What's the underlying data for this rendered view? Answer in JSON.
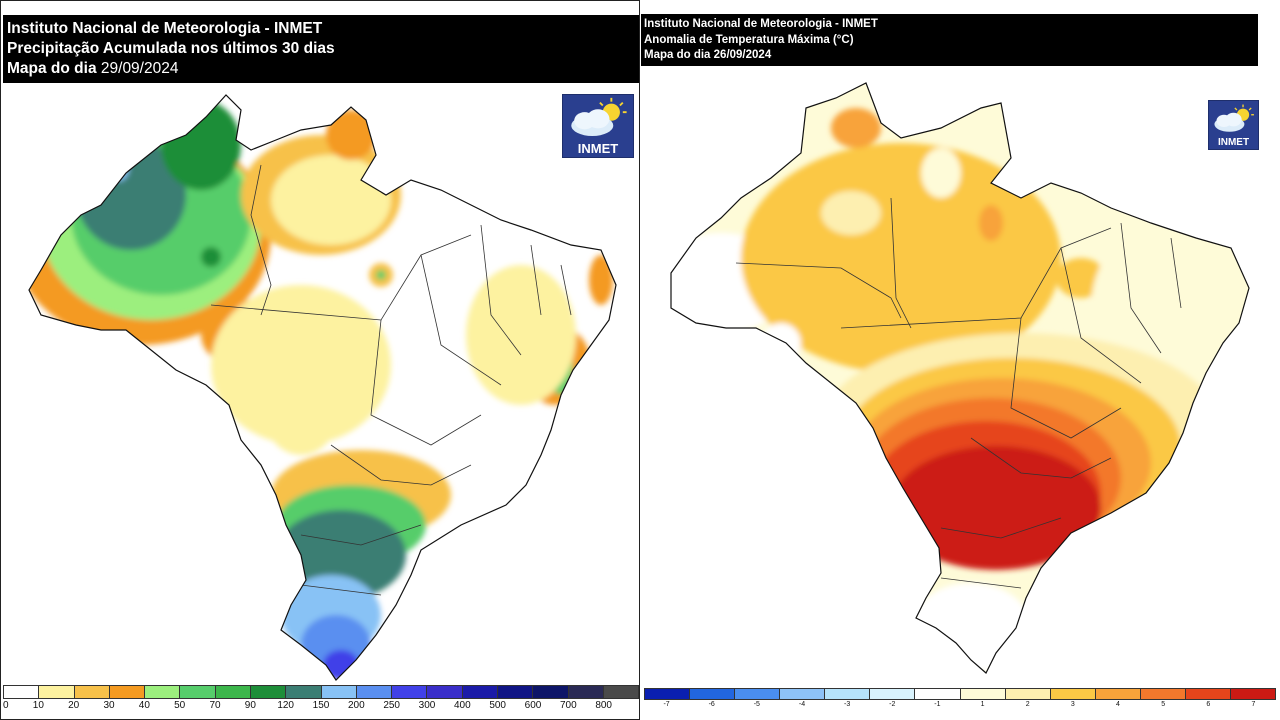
{
  "left": {
    "title": "Instituto Nacional de Meteorologia - INMET",
    "subtitle": "Precipitação Acumulada nos últimos 30 dias",
    "date_label": "Mapa do dia",
    "date_value": "29/09/2024",
    "logo_text": "INMET",
    "legend": {
      "colors": [
        "#ffffff",
        "#fdf2a0",
        "#f7c14a",
        "#f49a21",
        "#9cef7e",
        "#56cd6b",
        "#3cb64b",
        "#1e8e39",
        "#3b7e73",
        "#88c2f5",
        "#5a8ff0",
        "#4141e8",
        "#3a2ec9",
        "#1b1ba8",
        "#101585",
        "#0d1568",
        "#2a2a55",
        "#4a4a4a"
      ],
      "ticks": [
        "0",
        "10",
        "20",
        "30",
        "40",
        "50",
        "70",
        "90",
        "120",
        "150",
        "200",
        "250",
        "300",
        "400",
        "500",
        "600",
        "700",
        "800"
      ]
    }
  },
  "right": {
    "title": "Instituto Nacional de Meteorologia - INMET",
    "subtitle": "Anomalia de Temperatura Máxima (°C)",
    "date_label": "Mapa do dia",
    "date_value": "26/09/2024",
    "logo_text": "INMET",
    "legend": {
      "colors": [
        "#0a1fb0",
        "#2266e0",
        "#4a8ef0",
        "#8ec2f7",
        "#b6e3fb",
        "#d9f3fd",
        "#ffffff",
        "#fefbd8",
        "#fdefb0",
        "#fbc845",
        "#f8a33a",
        "#f3782c",
        "#e6451b",
        "#cc1a14"
      ],
      "ticks": [
        "-7",
        "-6",
        "-5",
        "-4",
        "-3",
        "-2",
        "-1",
        "1",
        "2",
        "3",
        "4",
        "5",
        "6",
        "7"
      ]
    }
  }
}
